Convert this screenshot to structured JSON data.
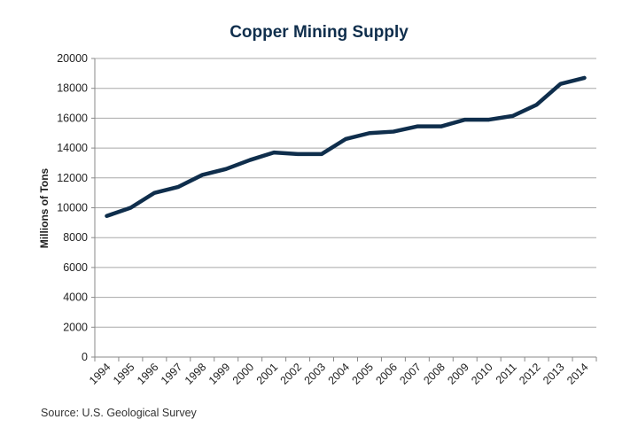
{
  "chart_data": {
    "type": "line",
    "title": "Copper Mining Supply",
    "xlabel": "",
    "ylabel": "Millions of Tons",
    "ylim": [
      0,
      20000
    ],
    "yticks": [
      0,
      2000,
      4000,
      6000,
      8000,
      10000,
      12000,
      14000,
      16000,
      18000,
      20000
    ],
    "grid": true,
    "legend": "none",
    "categories": [
      "1994",
      "1995",
      "1996",
      "1997",
      "1998",
      "1999",
      "2000",
      "2001",
      "2002",
      "2003",
      "2004",
      "2005",
      "2006",
      "2007",
      "2008",
      "2009",
      "2010",
      "2011",
      "2012",
      "2013",
      "2014"
    ],
    "series": [
      {
        "values": [
          9450,
          10000,
          11000,
          11400,
          12200,
          12600,
          13200,
          13700,
          13600,
          13600,
          14600,
          15000,
          15100,
          15450,
          15450,
          15900,
          15900,
          16150,
          16900,
          18300,
          18700
        ]
      }
    ],
    "source": "Source: U.S. Geological Survey"
  },
  "colors": {
    "line": "#0f2e4c",
    "title": "#0f2e4c",
    "grid": "#a8a8a8",
    "axis": "#888888"
  }
}
